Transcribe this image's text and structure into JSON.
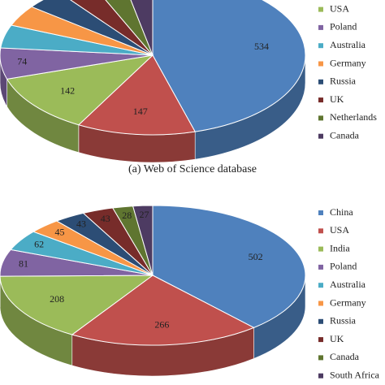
{
  "chart_data": [
    {
      "type": "pie",
      "caption": "(a) Web of Science database",
      "categories": [
        null,
        null,
        "USA",
        "Poland",
        "Australia",
        "Germany",
        "Russia",
        "UK",
        "Netherlands",
        "Canada"
      ],
      "values": [
        534,
        147,
        142,
        74,
        55,
        50,
        48,
        45,
        40,
        38
      ],
      "colors": [
        "#4f81bd",
        "#c0504d",
        "#9bbb59",
        "#8064a2",
        "#4bacc6",
        "#f79646",
        "#2c4d75",
        "#772c2a",
        "#5f7530",
        "#4d3b62"
      ],
      "printed": [
        true,
        true,
        true,
        true,
        false,
        false,
        false,
        false,
        false,
        false
      ]
    },
    {
      "type": "pie",
      "categories": [
        "China",
        "USA",
        "India",
        "Poland",
        "Australia",
        "Germany",
        "Russia",
        "UK",
        "Canada",
        "South Africa"
      ],
      "values": [
        502,
        266,
        208,
        81,
        62,
        45,
        43,
        43,
        28,
        27
      ],
      "colors": [
        "#4f81bd",
        "#c0504d",
        "#9bbb59",
        "#8064a2",
        "#4bacc6",
        "#f79646",
        "#2c4d75",
        "#772c2a",
        "#5f7530",
        "#4d3b62"
      ],
      "printed": [
        true,
        true,
        true,
        true,
        true,
        true,
        true,
        true,
        true,
        true
      ]
    }
  ]
}
